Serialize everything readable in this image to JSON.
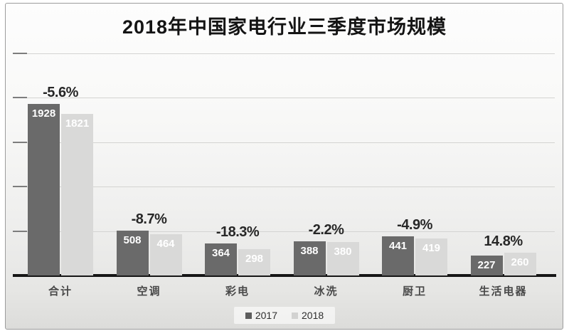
{
  "title": "2018年中国家电行业三季度市场规模",
  "legend": {
    "items": [
      {
        "label": "2017",
        "color": "#6a6a6a"
      },
      {
        "label": "2018",
        "color": "#d9d9d8"
      }
    ]
  },
  "chart_data": {
    "type": "bar",
    "title": "2018年中国家电行业三季度市场规模",
    "categories": [
      "合计",
      "空调",
      "彩电",
      "冰洗",
      "厨卫",
      "生活电器"
    ],
    "series": [
      {
        "name": "2017",
        "color": "#6a6a6a",
        "values": [
          1928,
          508,
          364,
          388,
          441,
          227
        ]
      },
      {
        "name": "2018",
        "color": "#d9d9d8",
        "values": [
          1821,
          464,
          298,
          380,
          419,
          260
        ]
      }
    ],
    "change_labels": [
      "-5.6%",
      "-8.7%",
      "-18.3%",
      "-2.2%",
      "-4.9%",
      "14.8%"
    ],
    "xlabel": "",
    "ylabel": "",
    "ylim": [
      0,
      2500
    ],
    "gridline_levels": [
      500,
      1000,
      1500,
      2000,
      2500
    ],
    "grid": true,
    "legend_position": "bottom",
    "value_labels_inside_bars": true
  }
}
